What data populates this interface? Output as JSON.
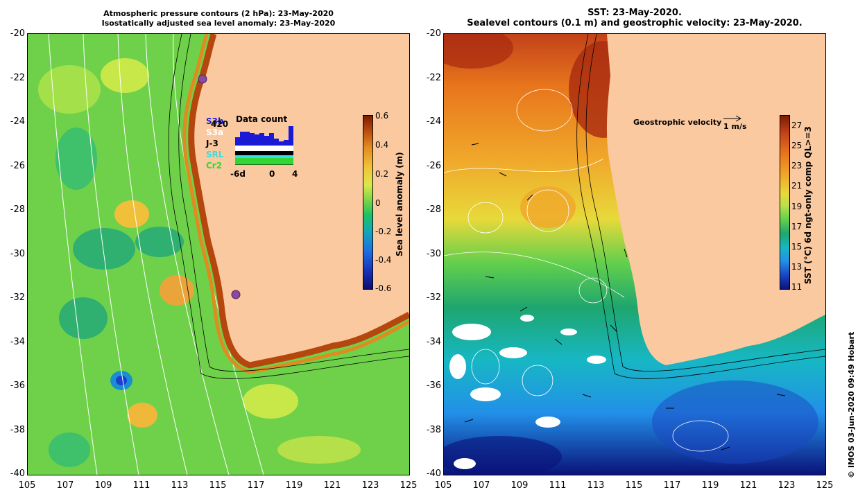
{
  "left_panel": {
    "title_line1": "Atmospheric pressure contours (2 hPa): 23-May-2020",
    "title_line2": "Isostatically adjusted sea level anomaly: 23-May-2020",
    "colorbar": {
      "title": "Sea level anomaly (m)",
      "ticks": [
        "0.6",
        "0.4",
        "0.2",
        "0",
        "-0.2",
        "-0.4",
        "-0.6"
      ]
    },
    "data_count": {
      "title": "Data count",
      "count_label": "420",
      "satellites": [
        "S3b",
        "S3a",
        "J-3",
        "SRL",
        "Cr2"
      ],
      "satellite_colors": [
        "#1a1ad6",
        "#ffffff",
        "#000000",
        "#33e0e0",
        "#33d633"
      ],
      "axis_labels": [
        "-6d",
        "0",
        "4"
      ]
    }
  },
  "right_panel": {
    "title_line1": "SST: 23-May-2020.",
    "title_line2": "Sealevel contours (0.1 m) and geostrophic velocity: 23-May-2020.",
    "colorbar": {
      "title": "SST (°C) 6d ngt-only comp QL>=3",
      "ticks": [
        "27",
        "25",
        "23",
        "21",
        "19",
        "17",
        "15",
        "13",
        "11"
      ]
    },
    "geostrophic_label": "Geostrophic velocity",
    "velocity_scale": "1 m/s"
  },
  "axes": {
    "y_ticks": [
      "-20",
      "-22",
      "-24",
      "-26",
      "-28",
      "-30",
      "-32",
      "-34",
      "-36",
      "-38",
      "-40"
    ],
    "x_ticks": [
      "105",
      "107",
      "109",
      "111",
      "113",
      "115",
      "117",
      "119",
      "121",
      "123",
      "125"
    ]
  },
  "footer": {
    "copyright": "© IMOS 03-Jun-2020 09:49 Hobart"
  },
  "colors": {
    "land": "#fbc9a0",
    "ocean_green": "#6fd14a",
    "coastal_high": "#b5470e"
  }
}
